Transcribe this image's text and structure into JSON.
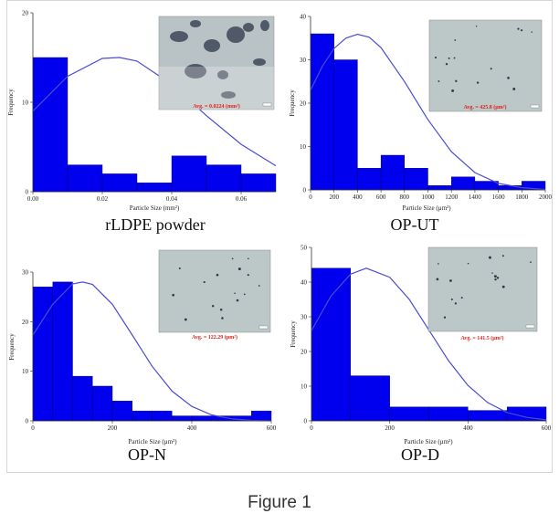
{
  "caption": "Figure 1",
  "colors": {
    "bar": "#0000ee",
    "curve": "#4b4bd6",
    "avg_text": "#e0201b",
    "axis": "#333333"
  },
  "chart_data": [
    {
      "type": "bar",
      "subcaption": "rLDPE powder",
      "xlabel": "Particle Size (mm²)",
      "ylabel": "Frequency",
      "avg_label": "Avg. = 0.0224 (mm²)",
      "xlim": [
        0,
        0.07
      ],
      "ylim": [
        0,
        20
      ],
      "xticks": [
        0,
        0.02,
        0.04,
        0.06
      ],
      "xtick_labels": [
        "0.00",
        "0.02",
        "0.04",
        "0.06"
      ],
      "yticks": [
        0,
        10,
        20
      ],
      "ytick_labels": [
        "0",
        "10",
        "20"
      ],
      "bin_edges": [
        0,
        0.01,
        0.02,
        0.03,
        0.04,
        0.05,
        0.06,
        0.07
      ],
      "values": [
        15,
        3,
        2,
        1,
        4,
        3,
        2
      ],
      "fit_curve": [
        [
          0,
          9.0
        ],
        [
          0.01,
          12.9
        ],
        [
          0.02,
          14.9
        ],
        [
          0.025,
          15.0
        ],
        [
          0.03,
          14.6
        ],
        [
          0.04,
          12.0
        ],
        [
          0.05,
          8.5
        ],
        [
          0.06,
          5.3
        ],
        [
          0.07,
          2.9
        ]
      ]
    },
    {
      "type": "bar",
      "subcaption": "OP-UT",
      "xlabel": "Particle Size (µm²)",
      "ylabel": "Frequency",
      "avg_label": "Avg. = 425.8 (µm²)",
      "xlim": [
        0,
        2000
      ],
      "ylim": [
        0,
        40
      ],
      "xticks": [
        0,
        200,
        400,
        600,
        800,
        1000,
        1200,
        1400,
        1600,
        1800,
        2000
      ],
      "xtick_labels": [
        "0",
        "200",
        "400",
        "600",
        "800",
        "1000",
        "1200",
        "1400",
        "1600",
        "1800",
        "2000"
      ],
      "yticks": [
        0,
        10,
        20,
        30,
        40
      ],
      "ytick_labels": [
        "0",
        "10",
        "20",
        "30",
        "40"
      ],
      "bin_edges": [
        0,
        200,
        400,
        600,
        800,
        1000,
        1200,
        1400,
        1600,
        1800,
        2000
      ],
      "values": [
        36,
        30,
        5,
        8,
        5,
        1,
        3,
        2,
        1,
        2
      ],
      "fit_curve": [
        [
          0,
          23
        ],
        [
          100,
          28.5
        ],
        [
          200,
          32.6
        ],
        [
          300,
          35
        ],
        [
          400,
          35.9
        ],
        [
          500,
          35.2
        ],
        [
          600,
          32.8
        ],
        [
          800,
          25
        ],
        [
          1000,
          16.2
        ],
        [
          1200,
          8.8
        ],
        [
          1400,
          4
        ],
        [
          1600,
          1.5
        ],
        [
          1800,
          0.5
        ],
        [
          2000,
          0.1
        ]
      ]
    },
    {
      "type": "bar",
      "subcaption": "OP-N",
      "xlabel": "Particle Size (µm²)",
      "ylabel": "Frequency",
      "avg_label": "Avg. = 122.29 (µm²)",
      "xlim": [
        0,
        600
      ],
      "ylim": [
        0,
        30
      ],
      "xticks": [
        0,
        200,
        400,
        600
      ],
      "xtick_labels": [
        "0",
        "200",
        "400",
        "600"
      ],
      "yticks": [
        0,
        10,
        20,
        30
      ],
      "ytick_labels": [
        "0",
        "10",
        "20",
        "30"
      ],
      "bin_edges": [
        0,
        50,
        100,
        150,
        200,
        250,
        300,
        350,
        400,
        450,
        500,
        550,
        600
      ],
      "values": [
        27,
        28,
        9,
        7,
        4,
        2,
        2,
        1,
        1,
        1,
        1,
        2
      ],
      "fit_curve": [
        [
          0,
          17.3
        ],
        [
          50,
          23.5
        ],
        [
          100,
          27.6
        ],
        [
          125,
          28
        ],
        [
          150,
          27.5
        ],
        [
          200,
          23.5
        ],
        [
          250,
          17.3
        ],
        [
          300,
          11
        ],
        [
          350,
          6
        ],
        [
          400,
          2.9
        ],
        [
          450,
          1.2
        ],
        [
          500,
          0.4
        ],
        [
          550,
          0.1
        ],
        [
          600,
          0
        ]
      ]
    },
    {
      "type": "bar",
      "subcaption": "OP-D",
      "xlabel": "Particle Size (µm²)",
      "ylabel": "Frequency",
      "avg_label": "Avg. = 141.5 (µm²)",
      "xlim": [
        0,
        600
      ],
      "ylim": [
        0,
        50
      ],
      "xticks": [
        0,
        200,
        400,
        600
      ],
      "xtick_labels": [
        "0",
        "200",
        "400",
        "600"
      ],
      "yticks": [
        0,
        10,
        20,
        30,
        40,
        50
      ],
      "ytick_labels": [
        "0",
        "10",
        "20",
        "30",
        "40",
        "50"
      ],
      "bin_edges": [
        0,
        100,
        200,
        300,
        400,
        500,
        600
      ],
      "values": [
        44,
        13,
        4,
        4,
        3,
        4
      ],
      "fit_curve": [
        [
          0,
          26
        ],
        [
          50,
          36
        ],
        [
          100,
          42.3
        ],
        [
          140,
          44
        ],
        [
          200,
          41.4
        ],
        [
          250,
          35
        ],
        [
          300,
          26.2
        ],
        [
          350,
          17.4
        ],
        [
          400,
          10.2
        ],
        [
          450,
          5.3
        ],
        [
          500,
          2.4
        ],
        [
          550,
          1
        ],
        [
          600,
          0.3
        ]
      ]
    }
  ]
}
